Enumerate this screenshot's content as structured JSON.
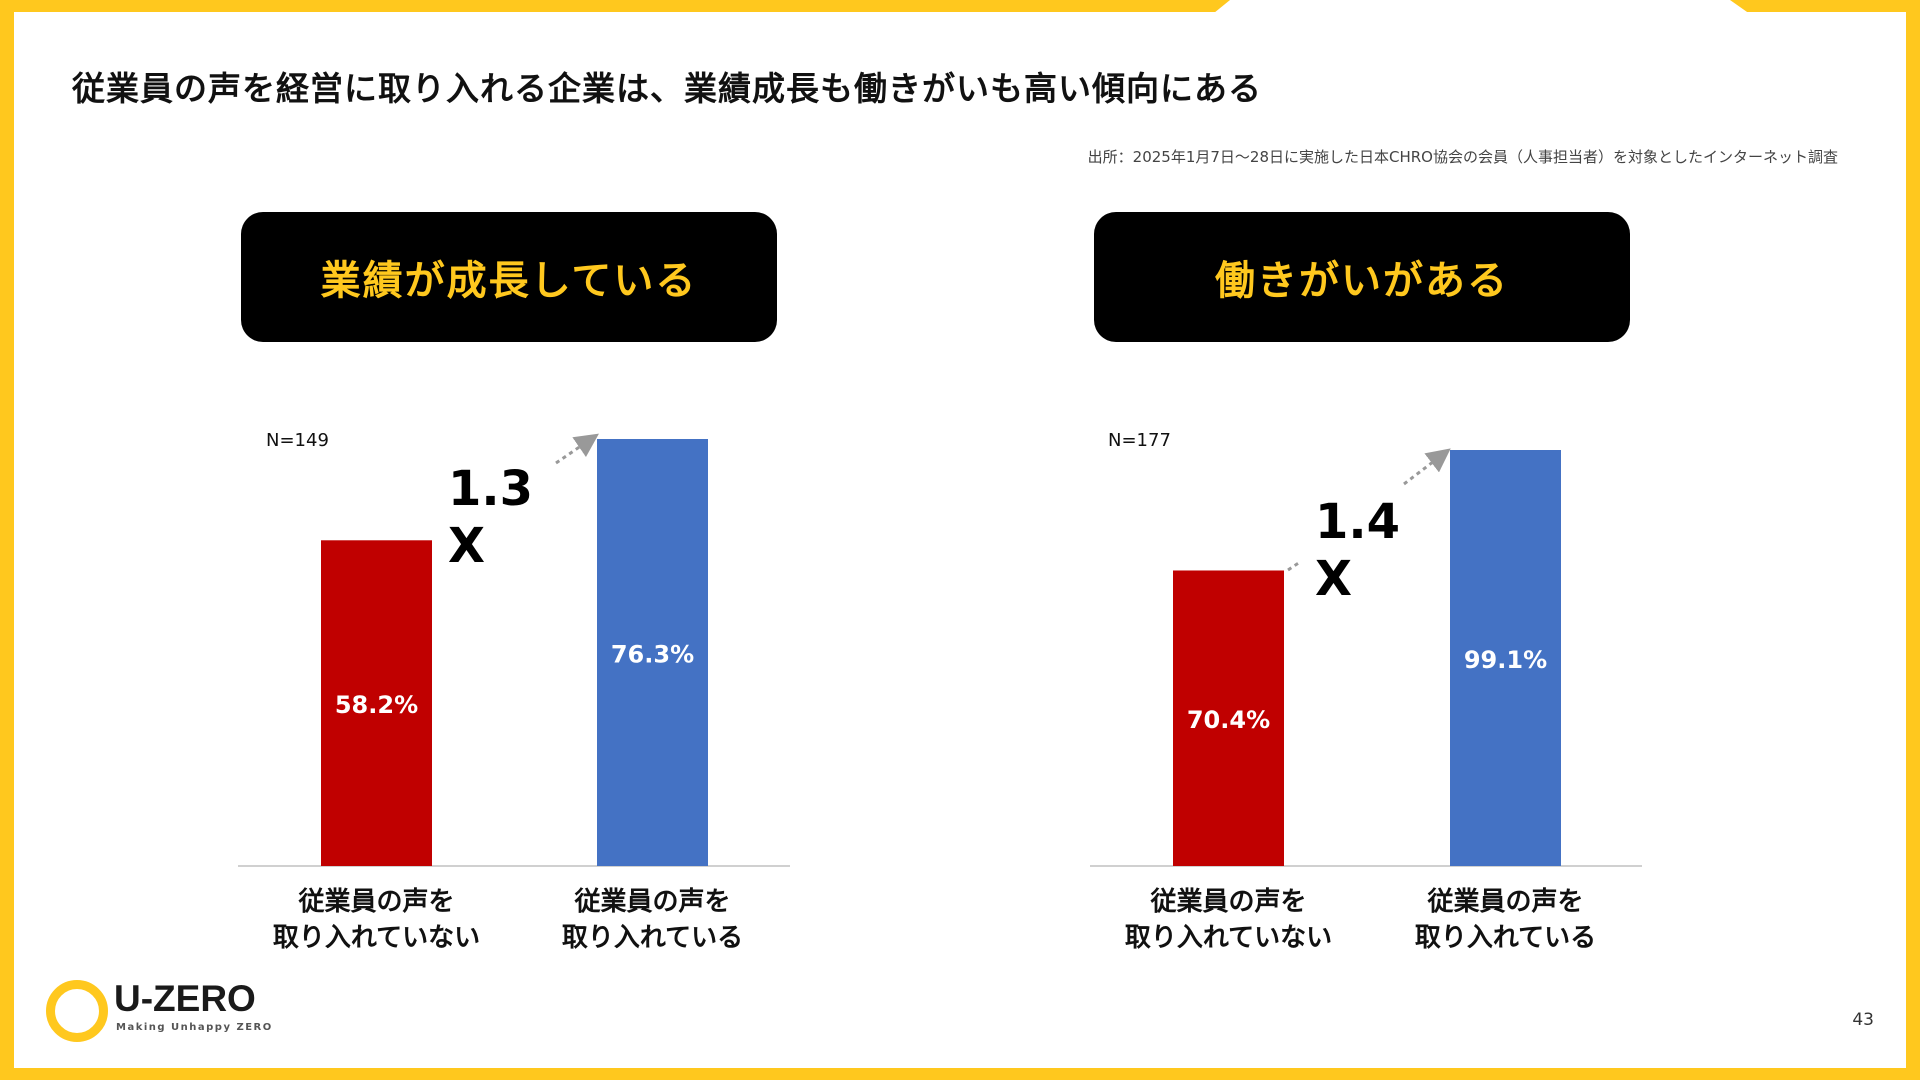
{
  "slide": {
    "title": "従業員の声を経営に取り入れる企業は、業績成長も働きがいも高い傾向にある",
    "source": "出所：2025年1月7日〜28日に実施した日本CHRO協会の会員（人事担当者）を対象としたインターネット調査",
    "page_number": "43"
  },
  "logo": {
    "name": "U-ZERO",
    "tagline": "Making Unhappy ZERO"
  },
  "colors": {
    "accent": "#FFC81E",
    "red": "#C00000",
    "blue": "#4472C4",
    "box": "#000000"
  },
  "chart_data": [
    {
      "type": "bar",
      "heading": "業績が成長している",
      "n_label": "N=149",
      "categories": [
        "従業員の声を\n取り入れていない",
        "従業員の声を\n取り入れている"
      ],
      "values": [
        58.2,
        76.3
      ],
      "value_labels": [
        "58.2%",
        "76.3%"
      ],
      "bar_colors": [
        "#C00000",
        "#4472C4"
      ],
      "multiplier": "1.3\nX",
      "ylim": [
        0,
        100
      ]
    },
    {
      "type": "bar",
      "heading": "働きがいがある",
      "n_label": "N=177",
      "categories": [
        "従業員の声を\n取り入れていない",
        "従業員の声を\n取り入れている"
      ],
      "values": [
        70.4,
        99.1
      ],
      "value_labels": [
        "70.4%",
        "99.1%"
      ],
      "bar_colors": [
        "#C00000",
        "#4472C4"
      ],
      "multiplier": "1.4\nX",
      "ylim": [
        0,
        130
      ]
    }
  ]
}
